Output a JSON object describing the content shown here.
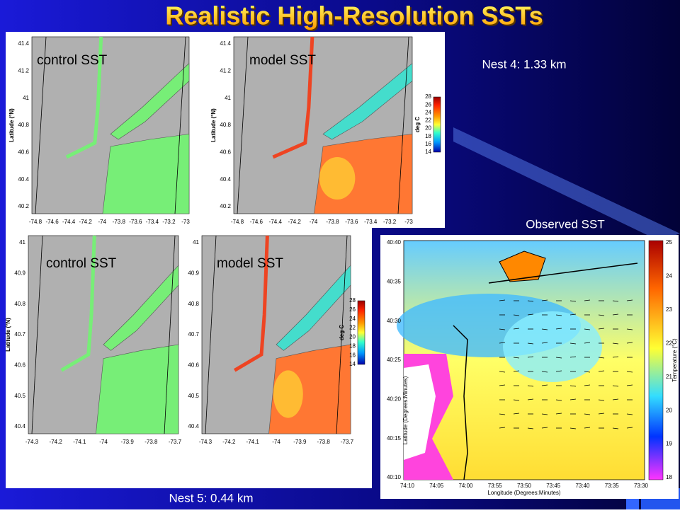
{
  "title": "Realistic High-Resolution  SSTs",
  "nest4": {
    "label": "Nest 4: 1.33 km"
  },
  "nest5": {
    "label": "Nest 5: 0.44 km"
  },
  "panels": [
    {
      "label": "control SST",
      "y_label": "Latitude (°N)",
      "y_ticks": [
        "41.4",
        "41.2",
        "41",
        "40.8",
        "40.6",
        "40.4",
        "40.2"
      ],
      "x_ticks": [
        "-74.8",
        "-74.6",
        "-74.4",
        "-74.2",
        "-74",
        "-73.8",
        "-73.6",
        "-73.4",
        "-73.2",
        "-73"
      ]
    },
    {
      "label": "model SST",
      "y_label": "Latitude (°N)",
      "y_ticks": [
        "41.4",
        "41.2",
        "41",
        "40.8",
        "40.6",
        "40.4",
        "40.2"
      ],
      "x_ticks": [
        "-74.8",
        "-74.6",
        "-74.4",
        "-74.2",
        "-74",
        "-73.8",
        "-73.6",
        "-73.4",
        "-73.2",
        "-73"
      ],
      "colorbar": {
        "label": "deg C",
        "ticks": [
          "28",
          "26",
          "24",
          "22",
          "20",
          "18",
          "16",
          "14"
        ]
      }
    },
    {
      "label": "control SST",
      "y_label": "Latitude (°N)",
      "y_ticks": [
        "41",
        "40.9",
        "40.8",
        "40.7",
        "40.6",
        "40.5",
        "40.4"
      ],
      "x_ticks": [
        "-74.3",
        "-74.2",
        "-74.1",
        "-74",
        "-73.9",
        "-73.8",
        "-73.7"
      ]
    },
    {
      "label": "model SST",
      "y_ticks": [
        "41",
        "40.9",
        "40.8",
        "40.7",
        "40.6",
        "40.5",
        "40.4"
      ],
      "x_ticks": [
        "-74.3",
        "-74.2",
        "-74.1",
        "-74",
        "-73.9",
        "-73.8",
        "-73.7"
      ],
      "colorbar": {
        "label": "deg C",
        "ticks": [
          "28",
          "26",
          "24",
          "22",
          "20",
          "18",
          "16",
          "14"
        ]
      }
    }
  ],
  "observed": {
    "label": "Observed SST",
    "y_label": "Latitude (Degrees:Minutes)",
    "x_label": "Longitude (Degrees:Minutes)",
    "y_ticks": [
      "40:40",
      "40:35",
      "40:30",
      "40:25",
      "40:20",
      "40:15",
      "40:10"
    ],
    "x_ticks": [
      "74:10",
      "74:05",
      "74:00",
      "73:55",
      "73:50",
      "73:45",
      "73:40",
      "73:35",
      "73:30"
    ],
    "colorbar": {
      "label": "Temperature (°C)",
      "ticks": [
        "25",
        "24",
        "23",
        "22",
        "21",
        "20",
        "19",
        "18"
      ]
    }
  }
}
